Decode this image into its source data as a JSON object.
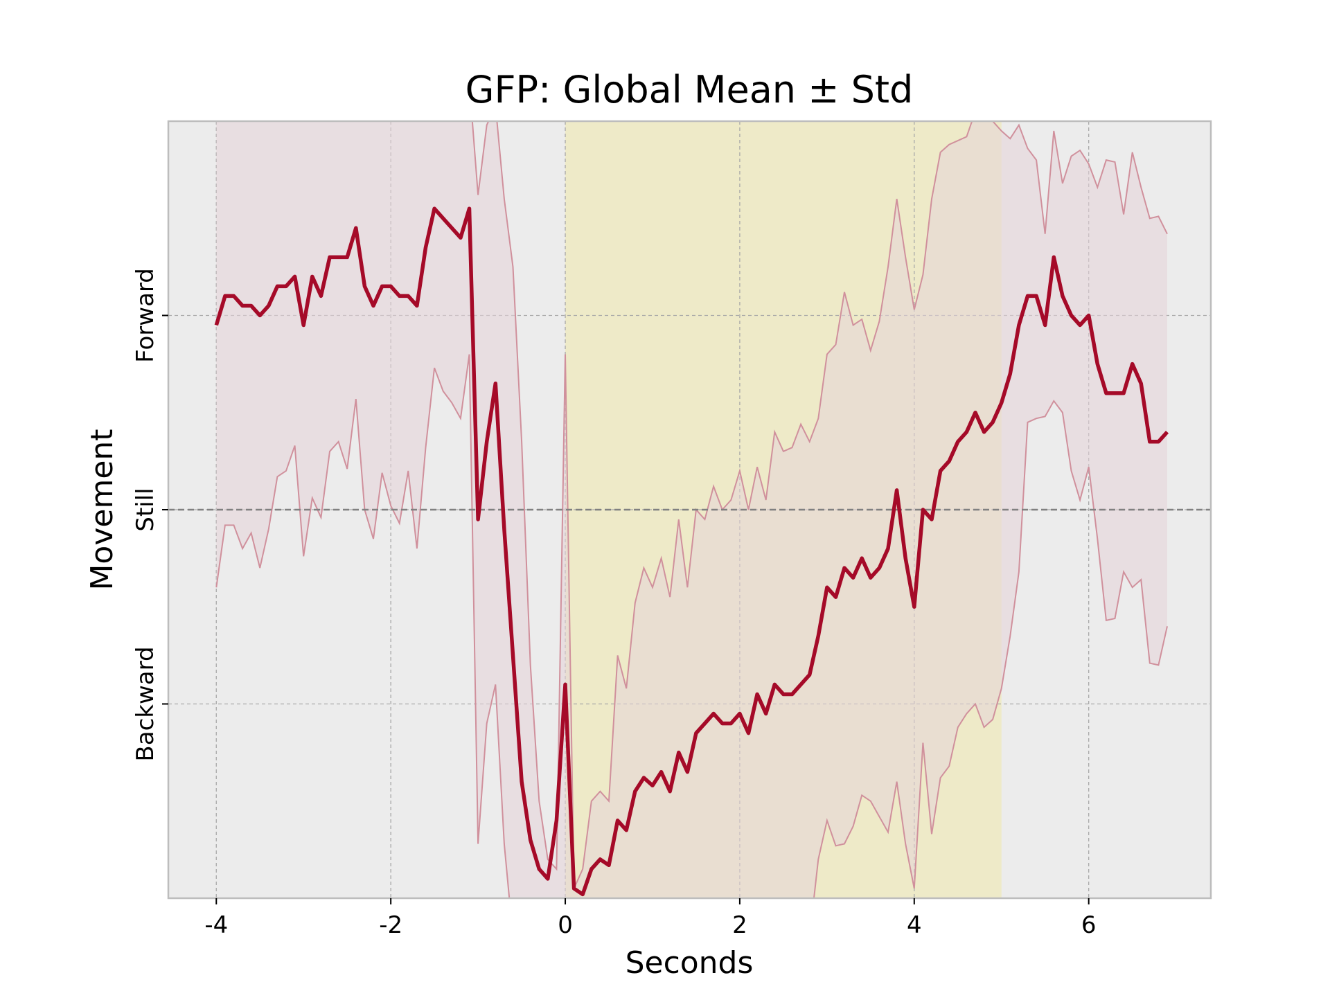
{
  "chart_data": {
    "type": "line",
    "title": "GFP: Global Mean ± Std",
    "xlabel": "Seconds",
    "ylabel": "Movement",
    "xlim": [
      -4.55,
      7.4
    ],
    "ylim": [
      -2.0,
      2.0
    ],
    "xticks": [
      -4,
      -2,
      0,
      2,
      4,
      6
    ],
    "xtick_labels": [
      "-4",
      "-2",
      "0",
      "2",
      "4",
      "6"
    ],
    "yticks": [
      1,
      0,
      -1
    ],
    "ytick_labels": [
      "Forward",
      "Still",
      "Backward"
    ],
    "reference_line": {
      "y": 0,
      "style": "dashed"
    },
    "grid": true,
    "shaded_region": {
      "x_start": 0,
      "x_end": 5,
      "color": "#eeeac8"
    },
    "colors": {
      "mean_line": "#a50a28",
      "band_fill": "#e6d4d8",
      "band_edge": "#d0909c",
      "background": "#ececec",
      "zero_line": "#808080"
    },
    "series": [
      {
        "name": "",
        "x": [
          -4.0,
          -3.9,
          -3.8,
          -3.7,
          -3.6,
          -3.5,
          -3.4,
          -3.3,
          -3.2,
          -3.1,
          -3.0,
          -2.9,
          -2.8,
          -2.7,
          -2.6,
          -2.5,
          -2.4,
          -2.3,
          -2.2,
          -2.1,
          -2.0,
          -1.9,
          -1.8,
          -1.7,
          -1.6,
          -1.5,
          -1.4,
          -1.3,
          -1.2,
          -1.1,
          -1.0,
          -0.9,
          -0.8,
          -0.7,
          -0.6,
          -0.5,
          -0.4,
          -0.3,
          -0.2,
          -0.1,
          0.0,
          0.1,
          0.2,
          0.3,
          0.4,
          0.5,
          0.6,
          0.7,
          0.8,
          0.9,
          1.0,
          1.1,
          1.2,
          1.3,
          1.4,
          1.5,
          1.6,
          1.7,
          1.8,
          1.9,
          2.0,
          2.1,
          2.2,
          2.3,
          2.4,
          2.5,
          2.6,
          2.7,
          2.8,
          2.9,
          3.0,
          3.1,
          3.2,
          3.3,
          3.4,
          3.5,
          3.6,
          3.7,
          3.8,
          3.9,
          4.0,
          4.1,
          4.2,
          4.3,
          4.4,
          4.5,
          4.6,
          4.7,
          4.8,
          4.9,
          5.0,
          5.1,
          5.2,
          5.3,
          5.4,
          5.5,
          5.6,
          5.7,
          5.8,
          5.9,
          6.0,
          6.1,
          6.2,
          6.3,
          6.4,
          6.5,
          6.6,
          6.7,
          6.8,
          6.9
        ],
        "mean": [
          0.95,
          1.1,
          1.1,
          1.05,
          1.05,
          1.0,
          1.05,
          1.15,
          1.15,
          1.2,
          0.95,
          1.2,
          1.1,
          1.3,
          1.3,
          1.3,
          1.45,
          1.15,
          1.05,
          1.15,
          1.15,
          1.1,
          1.1,
          1.05,
          1.35,
          1.55,
          1.5,
          1.45,
          1.4,
          1.55,
          -0.05,
          0.35,
          0.65,
          -0.1,
          -0.75,
          -1.4,
          -1.7,
          -1.85,
          -1.9,
          -1.6,
          -0.9,
          -1.95,
          -1.98,
          -1.85,
          -1.8,
          -1.83,
          -1.6,
          -1.65,
          -1.45,
          -1.38,
          -1.42,
          -1.35,
          -1.45,
          -1.25,
          -1.35,
          -1.15,
          -1.1,
          -1.05,
          -1.1,
          -1.1,
          -1.05,
          -1.15,
          -0.95,
          -1.05,
          -0.9,
          -0.95,
          -0.95,
          -0.9,
          -0.85,
          -0.65,
          -0.4,
          -0.45,
          -0.3,
          -0.35,
          -0.25,
          -0.35,
          -0.3,
          -0.2,
          0.1,
          -0.25,
          -0.5,
          0.0,
          -0.05,
          0.2,
          0.25,
          0.35,
          0.4,
          0.5,
          0.4,
          0.45,
          0.55,
          0.7,
          0.95,
          1.1,
          1.1,
          0.95,
          1.3,
          1.1,
          1.0,
          0.95,
          1.0,
          0.75,
          0.6,
          0.6,
          0.6,
          0.75,
          0.65,
          0.35,
          0.35,
          0.4
        ],
        "upper": [
          2.2,
          2.2,
          2.2,
          2.2,
          2.2,
          2.2,
          2.2,
          2.2,
          2.2,
          2.2,
          2.2,
          2.2,
          2.2,
          2.2,
          2.2,
          2.2,
          2.2,
          2.2,
          2.2,
          2.2,
          2.2,
          2.2,
          2.2,
          2.2,
          2.2,
          2.2,
          2.2,
          2.2,
          2.2,
          2.2,
          1.62,
          1.98,
          2.08,
          1.6,
          1.25,
          0.35,
          -0.8,
          -1.5,
          -1.8,
          -1.85,
          0.8,
          -1.95,
          -1.85,
          -1.5,
          -1.45,
          -1.5,
          -0.75,
          -0.92,
          -0.48,
          -0.3,
          -0.4,
          -0.25,
          -0.45,
          -0.05,
          -0.4,
          0.0,
          -0.05,
          0.12,
          0.0,
          0.05,
          0.2,
          0.0,
          0.22,
          0.05,
          0.4,
          0.3,
          0.32,
          0.44,
          0.35,
          0.47,
          0.8,
          0.85,
          1.12,
          0.95,
          0.98,
          0.82,
          0.97,
          1.25,
          1.6,
          1.3,
          1.03,
          1.21,
          1.6,
          1.84,
          1.88,
          1.9,
          1.92,
          2.05,
          2.25,
          2.0,
          1.95,
          1.91,
          1.98,
          1.86,
          1.8,
          1.42,
          1.95,
          1.68,
          1.82,
          1.85,
          1.78,
          1.66,
          1.8,
          1.79,
          1.52,
          1.84,
          1.66,
          1.5,
          1.51,
          1.42
        ],
        "lower": [
          -0.4,
          -0.08,
          -0.08,
          -0.2,
          -0.12,
          -0.3,
          -0.1,
          0.17,
          0.2,
          0.33,
          -0.24,
          0.06,
          -0.04,
          0.3,
          0.35,
          0.21,
          0.57,
          0.0,
          -0.15,
          0.19,
          0.02,
          -0.07,
          0.2,
          -0.2,
          0.32,
          0.73,
          0.61,
          0.55,
          0.47,
          0.8,
          -1.72,
          -1.1,
          -0.9,
          -1.72,
          -2.2,
          -2.2,
          -2.2,
          -2.2,
          -2.2,
          -2.2,
          -2.2,
          -2.2,
          -2.2,
          -2.2,
          -2.2,
          -2.2,
          -2.2,
          -2.2,
          -2.2,
          -2.2,
          -2.2,
          -2.2,
          -2.2,
          -2.2,
          -2.2,
          -2.2,
          -2.2,
          -2.2,
          -2.2,
          -2.2,
          -2.2,
          -2.2,
          -2.2,
          -2.2,
          -2.2,
          -2.2,
          -2.2,
          -2.2,
          -2.2,
          -1.8,
          -1.6,
          -1.73,
          -1.72,
          -1.63,
          -1.47,
          -1.5,
          -1.58,
          -1.66,
          -1.4,
          -1.72,
          -1.95,
          -1.2,
          -1.67,
          -1.38,
          -1.32,
          -1.12,
          -1.05,
          -1.0,
          -1.12,
          -1.08,
          -0.92,
          -0.65,
          -0.32,
          0.45,
          0.47,
          0.48,
          0.56,
          0.5,
          0.2,
          0.05,
          0.22,
          -0.15,
          -0.57,
          -0.56,
          -0.32,
          -0.4,
          -0.36,
          -0.79,
          -0.8,
          -0.6
        ]
      }
    ]
  }
}
